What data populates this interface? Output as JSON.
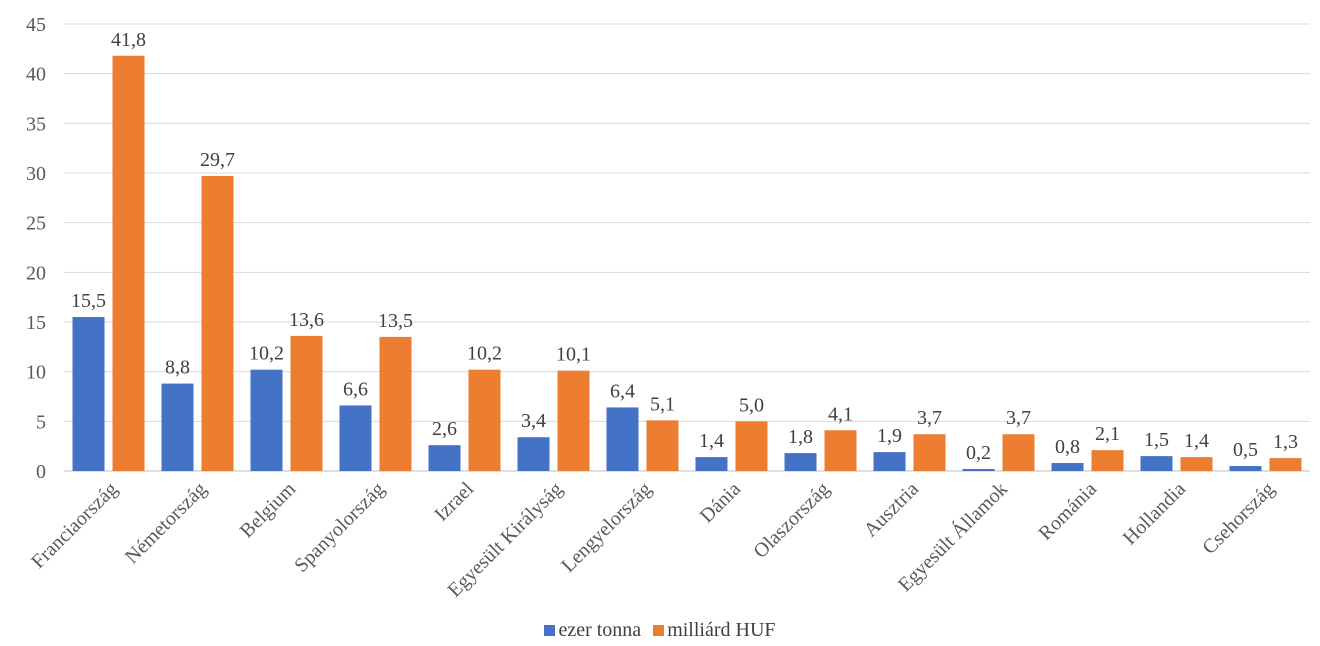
{
  "chart_data": {
    "type": "bar",
    "title": "",
    "xlabel": "",
    "ylabel": "",
    "ylim": [
      0,
      45
    ],
    "yticks": [
      0,
      5,
      10,
      15,
      20,
      25,
      30,
      35,
      40,
      45
    ],
    "grid": true,
    "legend_position": "bottom",
    "categories": [
      "Franciaország",
      "Németország",
      "Belgium",
      "Spanyolország",
      "Izrael",
      "Egyesült Királyság",
      "Lengyelország",
      "Dánia",
      "Olaszország",
      "Ausztria",
      "Egyesült Államok",
      "Románia",
      "Hollandia",
      "Csehország"
    ],
    "series": [
      {
        "name": "ezer tonna",
        "color": "#4472C4",
        "values": [
          15.5,
          8.8,
          10.2,
          6.6,
          2.6,
          3.4,
          6.4,
          1.4,
          1.8,
          1.9,
          0.2,
          0.8,
          1.5,
          0.5
        ],
        "labels": [
          "15,5",
          "8,8",
          "10,2",
          "6,6",
          "2,6",
          "3,4",
          "6,4",
          "1,4",
          "1,8",
          "1,9",
          "0,2",
          "0,8",
          "1,5",
          "0,5"
        ]
      },
      {
        "name": "milliárd HUF",
        "color": "#ED7D31",
        "values": [
          41.8,
          29.7,
          13.6,
          13.5,
          10.2,
          10.1,
          5.1,
          5.0,
          4.1,
          3.7,
          3.7,
          2.1,
          1.4,
          1.3
        ],
        "labels": [
          "41,8",
          "29,7",
          "13,6",
          "13,5",
          "10,2",
          "10,1",
          "5,1",
          "5,0",
          "4,1",
          "3,7",
          "3,7",
          "2,1",
          "1,4",
          "1,3"
        ]
      }
    ]
  }
}
